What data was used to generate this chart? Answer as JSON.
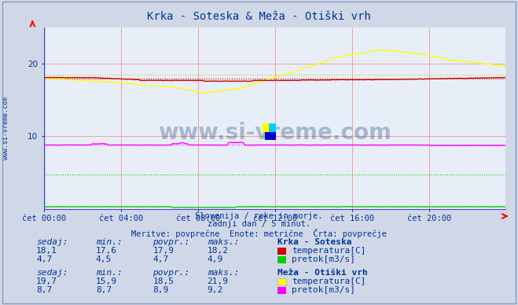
{
  "title": "Krka - Soteska & Meža - Otiški vrh",
  "subtitle1": "Slovenija / reke in morje.",
  "subtitle2": "zadnji dan / 5 minut.",
  "subtitle3": "Meritve: povprečne  Enote: metrične  Črta: povprečje",
  "bg_color": "#d0d8e8",
  "plot_bg_color": "#e8eef8",
  "grid_color": "#f0a0a0",
  "n_points": 288,
  "x_ticks_idx": [
    0,
    48,
    96,
    144,
    192,
    240
  ],
  "x_labels": [
    "čet 00:00",
    "čet 04:00",
    "čet 08:00",
    "čet 12:00",
    "čet 16:00",
    "čet 20:00"
  ],
  "ylim": [
    0,
    25
  ],
  "y_ticks": [
    10,
    20
  ],
  "krka_temp_color": "#cc0000",
  "krka_temp_avg": 17.9,
  "krka_temp_min": 17.6,
  "krka_temp_max": 18.2,
  "krka_temp_sedaj": 18.1,
  "krka_pretok_color": "#00cc00",
  "krka_pretok_avg": 4.7,
  "krka_pretok_min": 4.5,
  "krka_pretok_max": 4.9,
  "krka_pretok_sedaj": 4.7,
  "meza_temp_color": "#ffff00",
  "meza_temp_avg": 18.5,
  "meza_temp_min": 15.9,
  "meza_temp_max": 21.9,
  "meza_temp_sedaj": 19.7,
  "meza_pretok_color": "#ff00ff",
  "meza_pretok_avg": 8.9,
  "meza_pretok_min": 8.7,
  "meza_pretok_max": 9.2,
  "meza_pretok_sedaj": 8.7,
  "text_color": "#003399",
  "watermark": "www.si-vreme.com",
  "watermark_color": "#1a3a6e",
  "logo_yellow": "#ffff00",
  "logo_cyan": "#00ccff",
  "logo_blue": "#0000cc"
}
